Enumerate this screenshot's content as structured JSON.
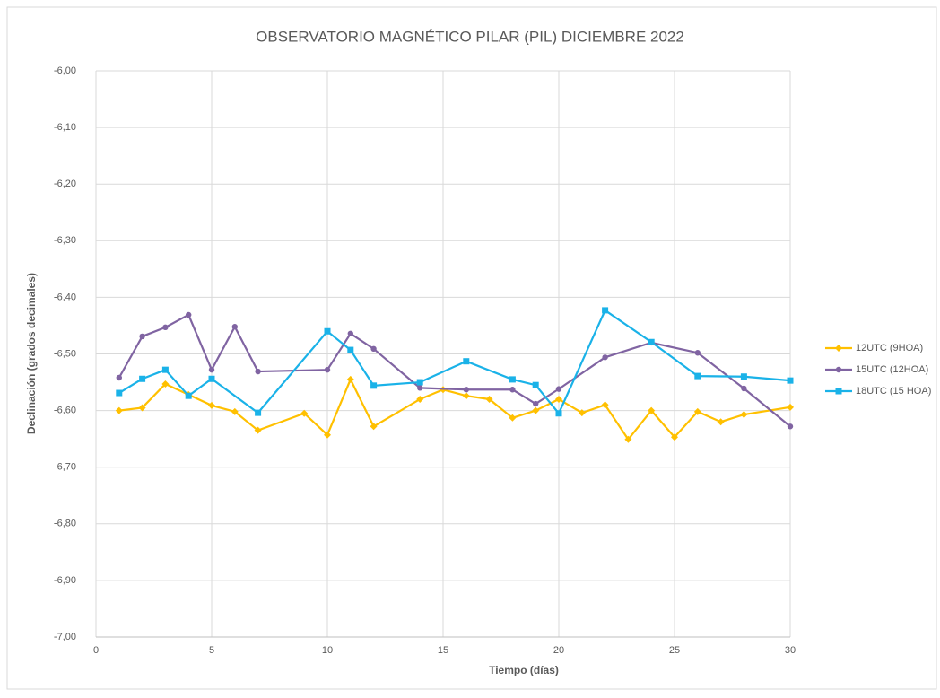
{
  "chart_data": {
    "type": "line",
    "title": "OBSERVATORIO MAGNÉTICO PILAR (PIL) DICIEMBRE 2022",
    "x_label": "Tiempo (días)",
    "y_label": "Declinación (grados decimales)",
    "xlim": [
      0,
      30
    ],
    "xticks": [
      0,
      5,
      10,
      15,
      20,
      25,
      30
    ],
    "ylim": [
      -7,
      -6
    ],
    "yticks": [
      {
        "value": -7,
        "label": "-7,00"
      },
      {
        "value": -6.9,
        "label": "-6,90"
      },
      {
        "value": -6.8,
        "label": "-6,80"
      },
      {
        "value": -6.7,
        "label": "-6,70"
      },
      {
        "value": -6.6,
        "label": "-6,60"
      },
      {
        "value": -6.5,
        "label": "-6,50"
      },
      {
        "value": -6.4,
        "label": "-6,40"
      },
      {
        "value": -6.3,
        "label": "-6,30"
      },
      {
        "value": -6.2,
        "label": "-6,20"
      },
      {
        "value": -6.1,
        "label": "-6,10"
      },
      {
        "value": -6,
        "label": "-6,00"
      }
    ],
    "grid": true,
    "legend": "right",
    "series": [
      {
        "name": "12UTC (9HOA)",
        "color": "#ffc000",
        "marker": "diamond",
        "x": [
          1,
          2,
          3,
          4,
          5,
          6,
          7,
          9,
          10,
          11,
          12,
          14,
          15,
          16,
          17,
          18,
          19,
          20,
          21,
          22,
          23,
          24,
          25,
          26,
          27,
          28,
          30
        ],
        "values": [
          -6.6,
          -6.595,
          -6.553,
          -6.572,
          -6.591,
          -6.602,
          -6.635,
          -6.605,
          -6.643,
          -6.545,
          -6.628,
          -6.58,
          -6.563,
          -6.574,
          -6.58,
          -6.613,
          -6.6,
          -6.58,
          -6.604,
          -6.59,
          -6.651,
          -6.6,
          -6.647,
          -6.602,
          -6.62,
          -6.607,
          -6.594
        ]
      },
      {
        "name": "15UTC (12HOA)",
        "color": "#8064a2",
        "marker": "circle",
        "x": [
          1,
          2,
          3,
          4,
          5,
          6,
          7,
          10,
          11,
          12,
          14,
          16,
          18,
          19,
          20,
          22,
          24,
          26,
          28,
          30
        ],
        "values": [
          -6.542,
          -6.469,
          -6.453,
          -6.431,
          -6.528,
          -6.452,
          -6.531,
          -6.528,
          -6.464,
          -6.491,
          -6.56,
          -6.563,
          -6.563,
          -6.588,
          -6.562,
          -6.506,
          -6.48,
          -6.498,
          -6.561,
          -6.628
        ]
      },
      {
        "name": "18UTC (15 HOA)",
        "color": "#1ab2e8",
        "marker": "square",
        "x": [
          1,
          2,
          3,
          4,
          5,
          7,
          10,
          11,
          12,
          14,
          16,
          18,
          19,
          20,
          22,
          24,
          26,
          28,
          30
        ],
        "values": [
          -6.569,
          -6.544,
          -6.528,
          -6.574,
          -6.544,
          -6.604,
          -6.46,
          -6.493,
          -6.556,
          -6.55,
          -6.513,
          -6.545,
          -6.555,
          -6.605,
          -6.423,
          -6.479,
          -6.539,
          -6.54,
          -6.547
        ]
      }
    ]
  }
}
